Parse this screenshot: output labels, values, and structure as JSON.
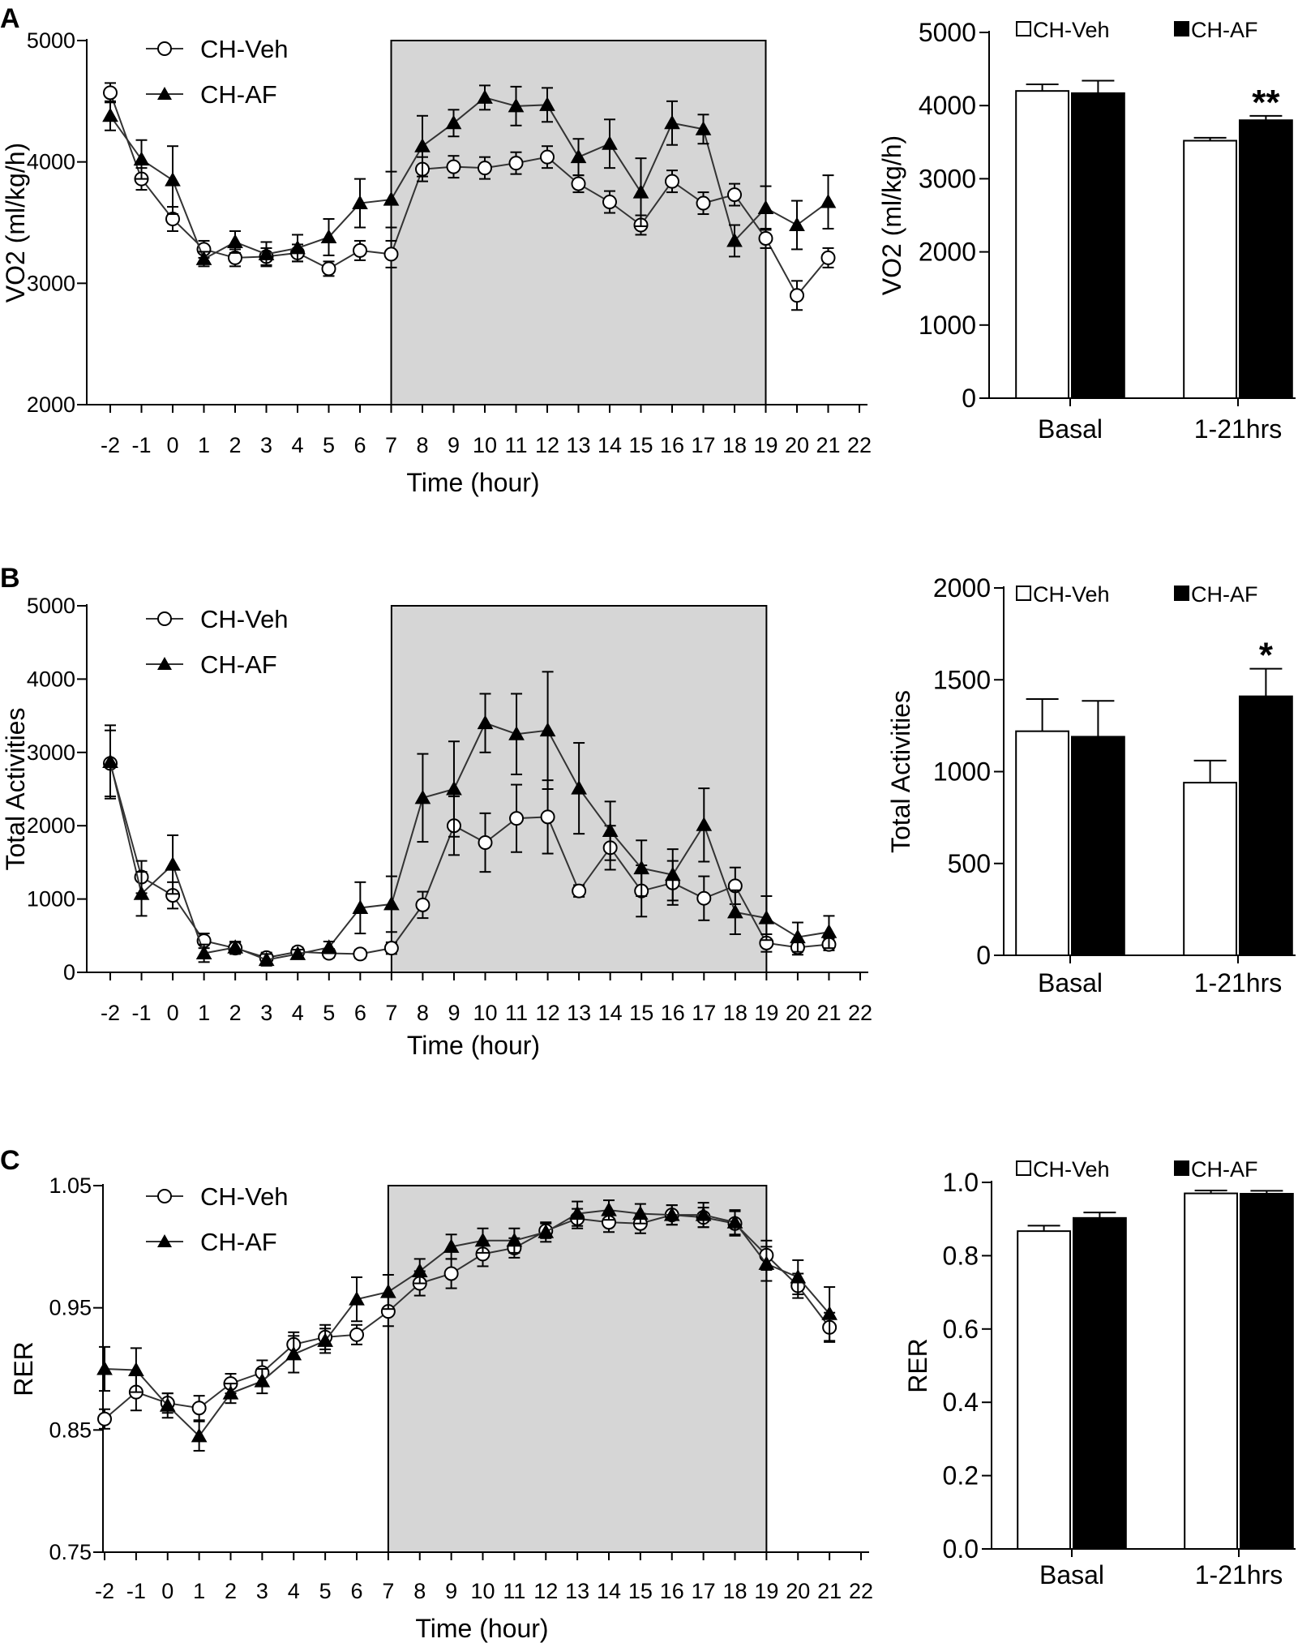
{
  "legend": {
    "veh": "CH-Veh",
    "af": "CH-AF"
  },
  "colors": {
    "shade": "#d6d6d6",
    "veh_fill": "#ffffff",
    "af_fill": "#000000",
    "line": "#333333"
  },
  "chart_data": [
    {
      "id": "A-line",
      "type": "line",
      "panel_letter": "A",
      "xlabel": "Time (hour)",
      "ylabel": "VO2 (ml/kg/h)",
      "ylim": [
        2000,
        5000
      ],
      "yticks": [
        2000,
        3000,
        4000,
        5000
      ],
      "xlim": [
        -2,
        22
      ],
      "shaded_region": [
        7,
        19
      ],
      "x": [
        -2,
        -1,
        0,
        1,
        2,
        3,
        4,
        5,
        6,
        7,
        8,
        9,
        10,
        11,
        12,
        13,
        14,
        15,
        16,
        17,
        18,
        19,
        20,
        21
      ],
      "series": [
        {
          "name": "CH-Veh",
          "marker": "circle",
          "values": [
            4570,
            3860,
            3530,
            3280,
            3210,
            3220,
            3250,
            3120,
            3270,
            3240,
            3940,
            3960,
            3950,
            3990,
            4040,
            3820,
            3670,
            3480,
            3840,
            3660,
            3730,
            3370,
            2900,
            3210
          ],
          "errors": [
            80,
            90,
            100,
            70,
            70,
            70,
            70,
            60,
            80,
            110,
            100,
            90,
            90,
            90,
            90,
            70,
            90,
            80,
            90,
            90,
            90,
            80,
            120,
            80
          ]
        },
        {
          "name": "CH-AF",
          "marker": "triangle",
          "values": [
            4380,
            4020,
            3850,
            3200,
            3340,
            3240,
            3290,
            3380,
            3660,
            3690,
            4130,
            4320,
            4530,
            4460,
            4470,
            4040,
            4150,
            3750,
            4320,
            4270,
            3350,
            3620,
            3480,
            3670
          ],
          "errors": [
            120,
            160,
            280,
            60,
            90,
            100,
            110,
            150,
            200,
            230,
            250,
            110,
            100,
            160,
            140,
            150,
            200,
            280,
            180,
            120,
            130,
            180,
            200,
            220
          ]
        }
      ]
    },
    {
      "id": "A-bar",
      "type": "bar",
      "ylabel": "VO2 (ml/kg/h)",
      "ylim": [
        0,
        5000
      ],
      "yticks": [
        0,
        1000,
        2000,
        3000,
        4000,
        5000
      ],
      "categories": [
        "Basal",
        "1-21hrs"
      ],
      "series": [
        {
          "name": "CH-Veh",
          "values": [
            4200,
            3520
          ],
          "errors": [
            90,
            40
          ]
        },
        {
          "name": "CH-AF",
          "values": [
            4170,
            3800
          ],
          "errors": [
            170,
            60
          ]
        }
      ],
      "annotations": [
        {
          "category": 1,
          "series": 1,
          "text": "**"
        }
      ]
    },
    {
      "id": "B-line",
      "type": "line",
      "panel_letter": "B",
      "xlabel": "Time (hour)",
      "ylabel": "Total Activities",
      "ylim": [
        0,
        5000
      ],
      "yticks": [
        0,
        1000,
        2000,
        3000,
        4000,
        5000
      ],
      "xlim": [
        -2,
        22
      ],
      "shaded_region": [
        7,
        19
      ],
      "x": [
        -2,
        -1,
        0,
        1,
        2,
        3,
        4,
        5,
        6,
        7,
        8,
        9,
        10,
        11,
        12,
        13,
        14,
        15,
        16,
        17,
        18,
        19,
        20,
        21
      ],
      "series": [
        {
          "name": "CH-Veh",
          "marker": "circle",
          "values": [
            2850,
            1300,
            1050,
            430,
            330,
            200,
            280,
            260,
            250,
            330,
            920,
            2000,
            1770,
            2100,
            2120,
            1110,
            1700,
            1110,
            1220,
            1010,
            1180,
            400,
            340,
            380
          ],
          "errors": [
            450,
            220,
            180,
            100,
            80,
            70,
            60,
            60,
            60,
            80,
            180,
            400,
            400,
            460,
            500,
            80,
            300,
            350,
            300,
            300,
            250,
            120,
            100,
            80
          ]
        },
        {
          "name": "CH-AF",
          "marker": "triangle",
          "values": [
            2870,
            1070,
            1470,
            260,
            340,
            170,
            250,
            340,
            880,
            930,
            2380,
            2500,
            3400,
            3250,
            3300,
            2510,
            1930,
            1420,
            1330,
            2010,
            820,
            740,
            480,
            550
          ],
          "errors": [
            500,
            300,
            400,
            120,
            80,
            80,
            60,
            80,
            350,
            380,
            600,
            650,
            400,
            550,
            800,
            620,
            400,
            380,
            350,
            500,
            300,
            300,
            200,
            220
          ]
        }
      ]
    },
    {
      "id": "B-bar",
      "type": "bar",
      "ylabel": "Total Activities",
      "ylim": [
        0,
        2000
      ],
      "yticks": [
        0,
        500,
        1000,
        1500,
        2000
      ],
      "categories": [
        "Basal",
        "1-21hrs"
      ],
      "series": [
        {
          "name": "CH-Veh",
          "values": [
            1220,
            940
          ],
          "errors": [
            175,
            120
          ]
        },
        {
          "name": "CH-AF",
          "values": [
            1190,
            1410
          ],
          "errors": [
            195,
            150
          ]
        }
      ],
      "annotations": [
        {
          "category": 1,
          "series": 1,
          "text": "*"
        }
      ]
    },
    {
      "id": "C-line",
      "type": "line",
      "panel_letter": "C",
      "xlabel": "Time (hour)",
      "ylabel": "RER",
      "ylim": [
        0.75,
        1.05
      ],
      "yticks": [
        0.75,
        0.85,
        0.95,
        1.05
      ],
      "ytick_labels": [
        "0.75",
        "0.85",
        "0.95",
        "1.05"
      ],
      "xlim": [
        -2,
        22
      ],
      "shaded_region": [
        7,
        19
      ],
      "x": [
        -2,
        -1,
        0,
        1,
        2,
        3,
        4,
        5,
        6,
        7,
        8,
        9,
        10,
        11,
        12,
        13,
        14,
        15,
        16,
        17,
        18,
        19,
        20,
        21
      ],
      "series": [
        {
          "name": "CH-Veh",
          "marker": "circle",
          "values": [
            0.859,
            0.881,
            0.872,
            0.868,
            0.888,
            0.897,
            0.92,
            0.926,
            0.928,
            0.947,
            0.97,
            0.978,
            0.994,
            0.999,
            1.013,
            1.023,
            1.02,
            1.019,
            1.026,
            1.024,
            1.019,
            0.993,
            0.968,
            0.934
          ],
          "errors": [
            0.008,
            0.015,
            0.008,
            0.01,
            0.008,
            0.01,
            0.01,
            0.01,
            0.008,
            0.012,
            0.01,
            0.012,
            0.01,
            0.008,
            0.006,
            0.008,
            0.008,
            0.008,
            0.008,
            0.008,
            0.01,
            0.012,
            0.01,
            0.012
          ]
        },
        {
          "name": "CH-AF",
          "marker": "triangle",
          "values": [
            0.9,
            0.899,
            0.87,
            0.845,
            0.88,
            0.89,
            0.912,
            0.923,
            0.957,
            0.963,
            0.98,
            1.0,
            1.005,
            1.005,
            1.012,
            1.027,
            1.03,
            1.027,
            1.026,
            1.026,
            1.02,
            0.986,
            0.975,
            0.945
          ],
          "errors": [
            0.018,
            0.018,
            0.01,
            0.012,
            0.008,
            0.01,
            0.015,
            0.01,
            0.018,
            0.014,
            0.01,
            0.01,
            0.01,
            0.01,
            0.008,
            0.01,
            0.008,
            0.008,
            0.008,
            0.01,
            0.01,
            0.014,
            0.014,
            0.022
          ]
        }
      ]
    },
    {
      "id": "C-bar",
      "type": "bar",
      "ylabel": "RER",
      "ylim": [
        0,
        1.0
      ],
      "yticks": [
        0,
        0.2,
        0.4,
        0.6,
        0.8,
        1.0
      ],
      "ytick_labels": [
        "0.0",
        "0.2",
        "0.4",
        "0.6",
        "0.8",
        "1.0"
      ],
      "categories": [
        "Basal",
        "1-21hrs"
      ],
      "series": [
        {
          "name": "CH-Veh",
          "values": [
            0.867,
            0.97
          ],
          "errors": [
            0.015,
            0.008
          ]
        },
        {
          "name": "CH-AF",
          "values": [
            0.903,
            0.969
          ],
          "errors": [
            0.015,
            0.008
          ]
        }
      ],
      "annotations": []
    }
  ]
}
